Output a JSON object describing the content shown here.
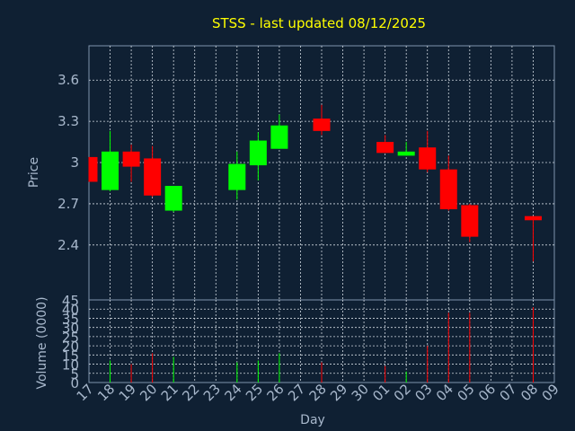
{
  "colors": {
    "background": "#0f2033",
    "title": "#ffff00",
    "axis_text": "#a8b8cc",
    "frame": "#7f95ad",
    "grid": "#d0d8e0",
    "up": "#00ff00",
    "down": "#ff0000"
  },
  "chart_data": [
    {
      "type": "candlestick",
      "title": "STSS - last updated 08/12/2025",
      "ylabel": "Price",
      "ylim": [
        2.0,
        3.85
      ],
      "yticks": [
        "2.4",
        "2.7",
        "3",
        "3.3",
        "3.6"
      ],
      "grid": true,
      "x_ticks": [
        "17",
        "18",
        "19",
        "20",
        "21",
        "22",
        "23",
        "24",
        "25",
        "26",
        "27",
        "28",
        "29",
        "30",
        "01",
        "02",
        "03",
        "04",
        "05",
        "06",
        "07",
        "08",
        "09"
      ],
      "candles": [
        {
          "x": "17",
          "open": 3.04,
          "close": 2.86,
          "high": 3.04,
          "low": 2.86
        },
        {
          "x": "18",
          "open": 2.8,
          "close": 3.08,
          "high": 3.23,
          "low": 2.79
        },
        {
          "x": "19",
          "open": 3.08,
          "close": 2.97,
          "high": 3.13,
          "low": 2.86
        },
        {
          "x": "20",
          "open": 3.03,
          "close": 2.76,
          "high": 3.12,
          "low": 2.75
        },
        {
          "x": "21",
          "open": 2.65,
          "close": 2.83,
          "high": 2.83,
          "low": 2.64
        },
        {
          "x": "24",
          "open": 2.8,
          "close": 2.99,
          "high": 3.08,
          "low": 2.73
        },
        {
          "x": "25",
          "open": 2.98,
          "close": 3.16,
          "high": 3.22,
          "low": 2.87
        },
        {
          "x": "26",
          "open": 3.1,
          "close": 3.27,
          "high": 3.35,
          "low": 3.1
        },
        {
          "x": "28",
          "open": 3.32,
          "close": 3.23,
          "high": 3.42,
          "low": 3.2
        },
        {
          "x": "01",
          "open": 3.15,
          "close": 3.07,
          "high": 3.2,
          "low": 3.07
        },
        {
          "x": "02",
          "open": 3.05,
          "close": 3.08,
          "high": 3.15,
          "low": 3.05
        },
        {
          "x": "03",
          "open": 3.11,
          "close": 2.95,
          "high": 3.23,
          "low": 2.93
        },
        {
          "x": "04",
          "open": 2.95,
          "close": 2.66,
          "high": 3.05,
          "low": 2.65
        },
        {
          "x": "05",
          "open": 2.69,
          "close": 2.46,
          "high": 2.7,
          "low": 2.42
        },
        {
          "x": "08",
          "open": 2.61,
          "close": 2.58,
          "high": 2.61,
          "low": 2.28
        }
      ]
    },
    {
      "type": "bar",
      "xlabel": "Day",
      "ylabel": "Volume (0000)",
      "ylim": [
        0,
        45
      ],
      "yticks": [
        "0",
        "5",
        "10",
        "15",
        "20",
        "25",
        "30",
        "35",
        "40",
        "45"
      ],
      "grid": true,
      "x_ticks": [
        "17",
        "18",
        "19",
        "20",
        "21",
        "22",
        "23",
        "24",
        "25",
        "26",
        "27",
        "28",
        "29",
        "30",
        "01",
        "02",
        "03",
        "04",
        "05",
        "06",
        "07",
        "08",
        "09"
      ],
      "bars": [
        {
          "x": "18",
          "value": 12,
          "dir": "up"
        },
        {
          "x": "19",
          "value": 10,
          "dir": "down"
        },
        {
          "x": "20",
          "value": 16,
          "dir": "down"
        },
        {
          "x": "21",
          "value": 14,
          "dir": "up"
        },
        {
          "x": "24",
          "value": 11,
          "dir": "up"
        },
        {
          "x": "25",
          "value": 12,
          "dir": "up"
        },
        {
          "x": "26",
          "value": 16,
          "dir": "up"
        },
        {
          "x": "28",
          "value": 11,
          "dir": "down"
        },
        {
          "x": "01",
          "value": 9,
          "dir": "down"
        },
        {
          "x": "02",
          "value": 6,
          "dir": "up"
        },
        {
          "x": "03",
          "value": 20,
          "dir": "down"
        },
        {
          "x": "04",
          "value": 38,
          "dir": "down"
        },
        {
          "x": "05",
          "value": 38,
          "dir": "down"
        },
        {
          "x": "08",
          "value": 41,
          "dir": "down"
        }
      ]
    }
  ]
}
